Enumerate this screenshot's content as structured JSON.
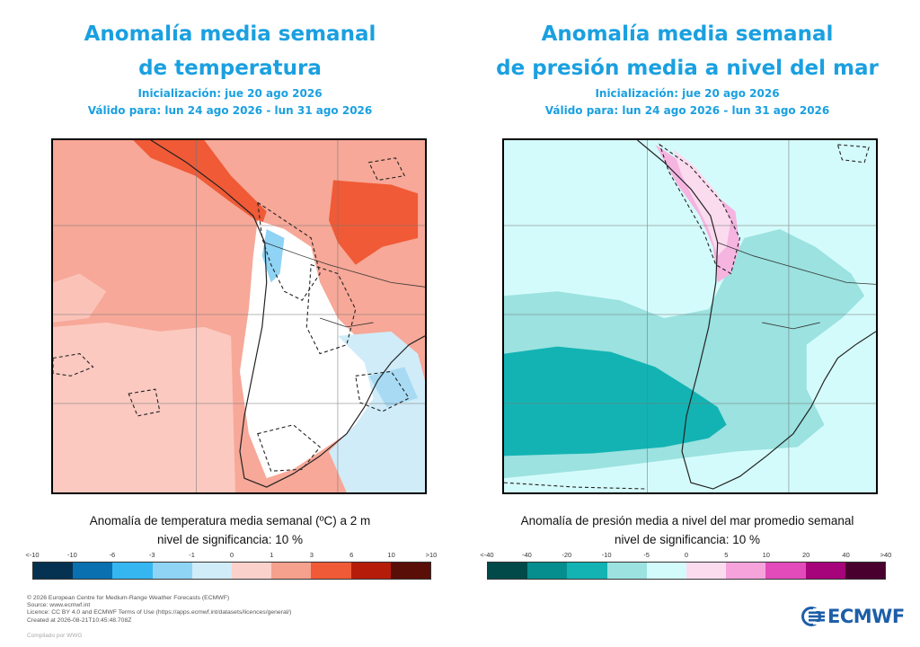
{
  "left_panel": {
    "title_line1": "Anomalía media semanal",
    "title_line2": "de temperatura",
    "init": "Inicialización: jue 20 ago 2026",
    "valid": "Válido para: lun 24 ago 2026 - lun 31 ago 2026",
    "caption": "Anomalía de temperatura media semanal (ºC) a 2 m",
    "significance": "nivel de significancia: 10 %",
    "ticks": [
      "<-10",
      "-10",
      "-6",
      "-3",
      "-1",
      "0",
      "1",
      "3",
      "6",
      "10",
      ">10"
    ],
    "colors": [
      "#053250",
      "#0a70b0",
      "#35b6f0",
      "#8fd3f5",
      "#d0ecf9",
      "#fbd1cc",
      "#f6a08e",
      "#f05a36",
      "#b51d0a",
      "#5a0e08"
    ]
  },
  "right_panel": {
    "title_line1": "Anomalía media semanal",
    "title_line2": "de presión media a nivel del mar",
    "init": "Inicialización: jue 20 ago 2026",
    "valid": "Válido para: lun 24 ago 2026 - lun 31 ago 2026",
    "caption": "Anomalía de presión media a nivel del mar promedio semanal",
    "significance": "nivel de significancia: 10 %",
    "ticks": [
      "<-40",
      "-40",
      "-20",
      "-10",
      "-5",
      "0",
      "5",
      "10",
      "20",
      "40",
      ">40"
    ],
    "colors": [
      "#024a4a",
      "#068e8e",
      "#13b3b3",
      "#9be2e0",
      "#d4fbfb",
      "#fbdcef",
      "#f6a3dc",
      "#e34bba",
      "#a6047a",
      "#4a002e"
    ]
  },
  "footer": {
    "line1": "© 2026 European Centre for Medium-Range Weather Forecasts (ECMWF)",
    "line2": "Source: www.ecmwf.int",
    "line3": "Licence: CC BY 4.0 and ECMWF Terms of Use (https://apps.ecmwf.int/datasets/licences/general/)",
    "line4": "Created at 2026-08-21T10:45:48.708Z",
    "compiled": "Compilado por WWG"
  },
  "logo": {
    "text": "ECMWF"
  }
}
